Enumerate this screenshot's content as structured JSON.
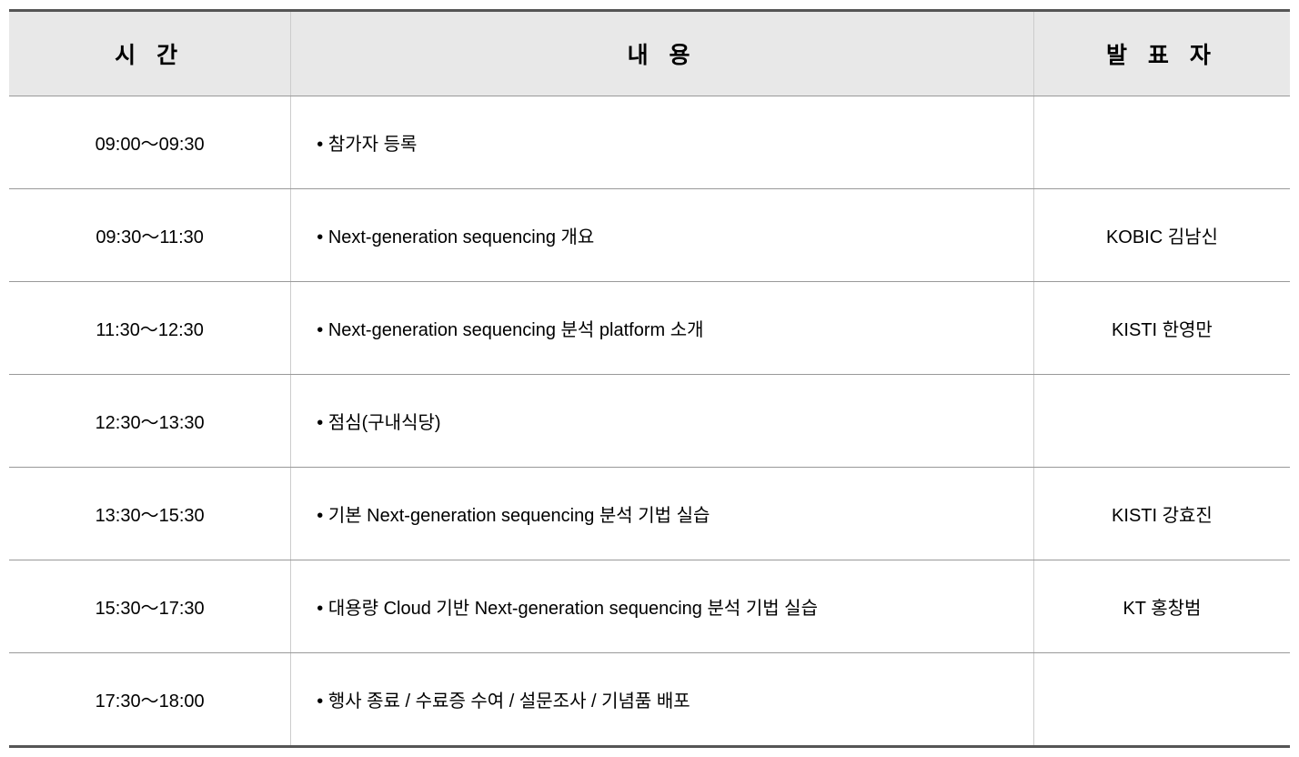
{
  "table": {
    "headers": {
      "time": "시  간",
      "content": "내   용",
      "presenter": "발 표 자"
    },
    "rows": [
      {
        "time": "09:00～09:30",
        "content": "참가자 등록",
        "presenter": ""
      },
      {
        "time": "09:30～11:30",
        "content": "Next-generation sequencing 개요",
        "presenter": "KOBIC 김남신"
      },
      {
        "time": "11:30～12:30",
        "content": "Next-generation sequencing 분석 platform 소개",
        "presenter": "KISTI 한영만"
      },
      {
        "time": "12:30～13:30",
        "content": "점심(구내식당)",
        "presenter": ""
      },
      {
        "time": "13:30～15:30",
        "content": "기본 Next-generation sequencing 분석 기법 실습",
        "presenter": "KISTI 강효진"
      },
      {
        "time": "15:30～17:30",
        "content": "대용량 Cloud 기반 Next-generation sequencing 분석 기법 실습",
        "presenter": "KT 홍창범"
      },
      {
        "time": "17:30～18:00",
        "content": "행사 종료 / 수료증 수여 / 설문조사 / 기념품 배포",
        "presenter": ""
      }
    ],
    "styling": {
      "header_bg": "#e8e8e8",
      "header_fontsize": 25,
      "header_fontweight": 900,
      "cell_fontsize": 20,
      "border_top_color": "#555555",
      "border_top_width": 3,
      "border_bottom_color": "#555555",
      "border_bottom_width": 3,
      "row_border_color": "#999999",
      "col_border_color": "#cccccc",
      "col_widths_pct": [
        22,
        58,
        20
      ],
      "cell_padding_v": 36,
      "header_padding_v": 28,
      "background_color": "#ffffff",
      "text_color": "#000000",
      "bullet": "•"
    }
  }
}
